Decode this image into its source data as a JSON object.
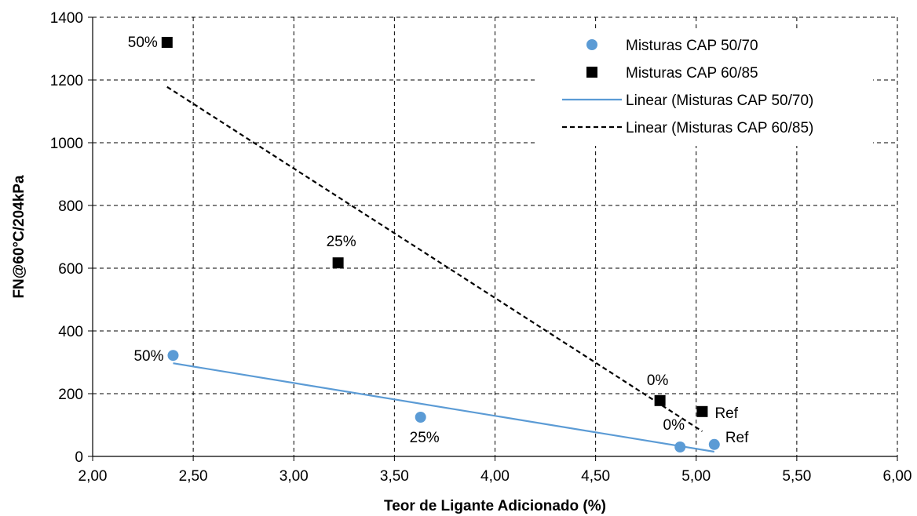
{
  "chart_data": {
    "type": "scatter",
    "xlabel": "Teor de Ligante Adicionado (%)",
    "ylabel": "FN@60°C/204kPa",
    "xlim": [
      2.0,
      6.0
    ],
    "ylim": [
      0,
      1400
    ],
    "x_ticks": [
      "2,00",
      "2,50",
      "3,00",
      "3,50",
      "4,00",
      "4,50",
      "5,00",
      "5,50",
      "6,00"
    ],
    "y_ticks": [
      "0",
      "200",
      "400",
      "600",
      "800",
      "1000",
      "1200",
      "1400"
    ],
    "grid": true,
    "legend_position": "top-right",
    "series": [
      {
        "name": "Misturas CAP 50/70",
        "marker": "circle",
        "color": "#5b9bd5",
        "points": [
          {
            "x": 2.4,
            "y": 322,
            "label": "50%"
          },
          {
            "x": 3.63,
            "y": 125,
            "label": "25%"
          },
          {
            "x": 4.92,
            "y": 30,
            "label": "0%"
          },
          {
            "x": 5.09,
            "y": 38,
            "label": "Ref"
          }
        ]
      },
      {
        "name": "Misturas CAP 60/85",
        "marker": "square",
        "color": "#000000",
        "points": [
          {
            "x": 2.37,
            "y": 1320,
            "label": "50%"
          },
          {
            "x": 3.22,
            "y": 617,
            "label": "25%"
          },
          {
            "x": 4.82,
            "y": 178,
            "label": "0%"
          },
          {
            "x": 5.03,
            "y": 143,
            "label": "Ref"
          }
        ]
      }
    ],
    "trendlines": [
      {
        "name": "Linear (Misturas CAP 50/70)",
        "color": "#5b9bd5",
        "style": "solid",
        "x": [
          2.4,
          5.09
        ],
        "y": [
          297,
          15
        ]
      },
      {
        "name": "Linear (Misturas CAP 60/85)",
        "color": "#000000",
        "style": "dashed",
        "x": [
          2.37,
          5.03
        ],
        "y": [
          1178,
          80
        ]
      }
    ]
  }
}
